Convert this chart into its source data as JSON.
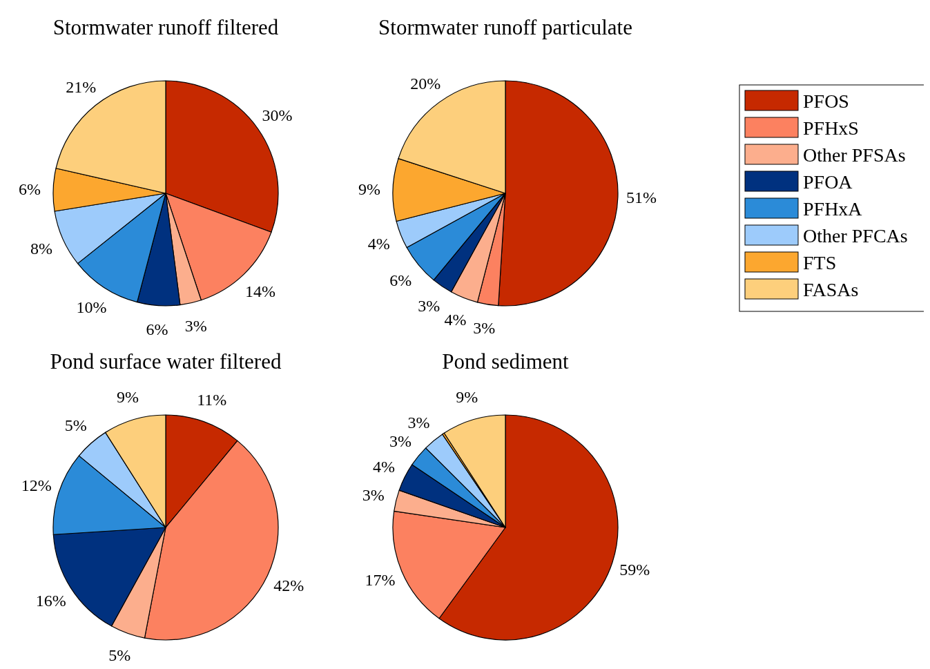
{
  "chart_data": [
    {
      "type": "pie",
      "title": "Stormwater runoff filtered",
      "categories": [
        "PFOS",
        "PFHxS",
        "Other PFSAs",
        "PFOA",
        "PFHxA",
        "Other PFCAs",
        "FTS",
        "FASAs"
      ],
      "values": [
        30,
        14,
        3,
        6,
        10,
        8,
        6,
        21
      ],
      "value_labels": [
        "30%",
        "14%",
        "3%",
        "6%",
        "10%",
        "8%",
        "6%",
        "21%"
      ],
      "colors": [
        "#c62900",
        "#fc8160",
        "#fcae8d",
        "#00317f",
        "#2b8bd8",
        "#9dcbfb",
        "#fca72f",
        "#fdcf7c"
      ],
      "legend": "right"
    },
    {
      "type": "pie",
      "title": "Stormwater runoff particulate",
      "categories": [
        null,
        null,
        null,
        null,
        null,
        null,
        null,
        null
      ],
      "values": [
        51,
        3,
        4,
        3,
        6,
        4,
        9,
        20
      ],
      "value_labels": [
        "51%",
        "3%",
        "4%",
        "3%",
        "6%",
        "4%",
        "9%",
        "20%"
      ],
      "colors": [
        "#c62900",
        "#fc8160",
        "#fcae8d",
        "#00317f",
        "#2b8bd8",
        "#9dcbfb",
        "#fca72f",
        "#fdcf7c"
      ]
    },
    {
      "type": "pie",
      "title": "Pond surface water filtered",
      "categories": [
        null,
        null,
        null,
        null,
        null,
        null,
        null,
        null
      ],
      "values": [
        11,
        42,
        5,
        16,
        12,
        5,
        null,
        9
      ],
      "value_labels": [
        "11%",
        "42%",
        "5%",
        "16%",
        "12%",
        "5%",
        null,
        "9%"
      ],
      "colors": [
        "#c62900",
        "#fc8160",
        "#fcae8d",
        "#00317f",
        "#2b8bd8",
        "#9dcbfb",
        null,
        "#fdcf7c"
      ]
    },
    {
      "type": "pie",
      "title": "Pond sediment",
      "categories": [
        null,
        null,
        null,
        null,
        null,
        null,
        null,
        null
      ],
      "values": [
        59,
        17,
        3,
        4,
        3,
        3,
        0.3,
        9
      ],
      "value_labels": [
        "59%",
        "17%",
        "3%",
        "4%",
        "3%",
        "3%",
        null,
        "9%"
      ],
      "colors": [
        "#c62900",
        "#fc8160",
        "#fcae8d",
        "#00317f",
        "#2b8bd8",
        "#9dcbfb",
        "#fca72f",
        "#fdcf7c"
      ]
    }
  ]
}
